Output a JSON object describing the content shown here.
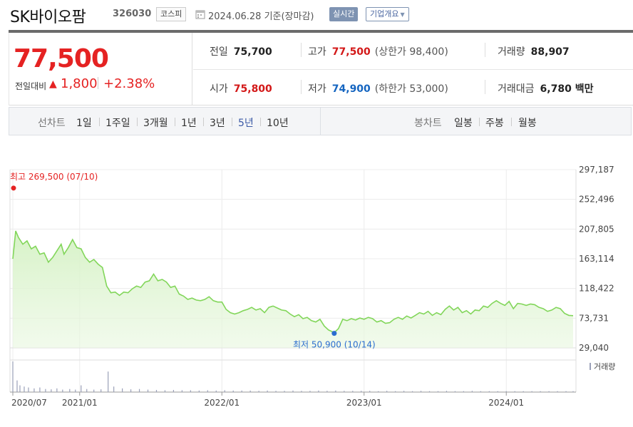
{
  "header": {
    "title": "SK바이오팜",
    "code": "326030",
    "market": "코스피",
    "as_of": "2024.06.28 기준(장마감)",
    "live_label": "실시간",
    "company_label": "기업개요",
    "dropdown_caret": "▼"
  },
  "quote": {
    "price": "77,500",
    "change_label": "전일대비",
    "change_arrow": "▲",
    "change_value": "1,800",
    "change_pct": "+2.38%",
    "prev_close_label": "전일",
    "prev_close": "75,700",
    "high_label": "고가",
    "high": "77,500",
    "upper_limit": "(상한가 98,400)",
    "volume_label": "거래량",
    "volume": "88,907",
    "open_label": "시가",
    "open": "75,800",
    "low_label": "저가",
    "low": "74,900",
    "lower_limit": "(하한가 53,000)",
    "amount_label": "거래대금",
    "amount": "6,780 백만"
  },
  "periods": {
    "line_label": "선차트",
    "line_items": [
      "1일",
      "1주일",
      "3개월",
      "1년",
      "3년",
      "5년",
      "10년"
    ],
    "selected": "5년",
    "candle_label": "봉차트",
    "candle_items": [
      "일봉",
      "주봉",
      "월봉"
    ]
  },
  "chart_data": {
    "type": "area",
    "x_tick_labels": [
      "2020/07",
      "2021/01",
      "2022/01",
      "2023/01",
      "2024/01"
    ],
    "y_tick_labels": [
      "297,187",
      "252,496",
      "207,805",
      "163,114",
      "118,422",
      "73,731",
      "29,040"
    ],
    "ylim": [
      29040,
      297187
    ],
    "grid": true,
    "max_annotation": "최고 269,500 (07/10)",
    "min_annotation": "최저 50,900 (10/14)",
    "volume_label": "거래량",
    "colors": {
      "line": "#82d65a",
      "fill": "#e8f7df",
      "max": "#e52222",
      "min": "#2b6dcf",
      "volume": "#9aa0b8"
    },
    "series": [
      {
        "values": [
          [
            2020.53,
            163000
          ],
          [
            2020.55,
            205000
          ],
          [
            2020.57,
            195000
          ],
          [
            2020.6,
            185000
          ],
          [
            2020.63,
            190000
          ],
          [
            2020.66,
            178000
          ],
          [
            2020.69,
            182000
          ],
          [
            2020.72,
            170000
          ],
          [
            2020.75,
            172000
          ],
          [
            2020.78,
            158000
          ],
          [
            2020.81,
            165000
          ],
          [
            2020.84,
            175000
          ],
          [
            2020.87,
            185000
          ],
          [
            2020.89,
            170000
          ],
          [
            2020.92,
            180000
          ],
          [
            2020.95,
            192000
          ],
          [
            2020.98,
            180000
          ],
          [
            2021.01,
            178000
          ],
          [
            2021.04,
            165000
          ],
          [
            2021.07,
            158000
          ],
          [
            2021.1,
            162000
          ],
          [
            2021.13,
            155000
          ],
          [
            2021.16,
            150000
          ],
          [
            2021.19,
            122000
          ],
          [
            2021.22,
            112000
          ],
          [
            2021.25,
            113000
          ],
          [
            2021.28,
            108000
          ],
          [
            2021.31,
            113000
          ],
          [
            2021.34,
            112000
          ],
          [
            2021.37,
            118000
          ],
          [
            2021.4,
            122000
          ],
          [
            2021.43,
            120000
          ],
          [
            2021.46,
            128000
          ],
          [
            2021.49,
            130000
          ],
          [
            2021.52,
            140000
          ],
          [
            2021.55,
            130000
          ],
          [
            2021.58,
            132000
          ],
          [
            2021.61,
            128000
          ],
          [
            2021.64,
            120000
          ],
          [
            2021.67,
            122000
          ],
          [
            2021.7,
            110000
          ],
          [
            2021.73,
            107000
          ],
          [
            2021.76,
            102000
          ],
          [
            2021.79,
            104000
          ],
          [
            2021.82,
            101000
          ],
          [
            2021.85,
            100000
          ],
          [
            2021.88,
            102000
          ],
          [
            2021.91,
            106000
          ],
          [
            2021.94,
            100000
          ],
          [
            2021.97,
            98000
          ],
          [
            2022.0,
            98000
          ],
          [
            2022.03,
            87000
          ],
          [
            2022.06,
            82000
          ],
          [
            2022.09,
            80000
          ],
          [
            2022.12,
            82000
          ],
          [
            2022.15,
            85000
          ],
          [
            2022.18,
            87000
          ],
          [
            2022.21,
            90000
          ],
          [
            2022.24,
            86000
          ],
          [
            2022.27,
            88000
          ],
          [
            2022.3,
            82000
          ],
          [
            2022.33,
            90000
          ],
          [
            2022.36,
            92000
          ],
          [
            2022.39,
            89000
          ],
          [
            2022.42,
            86000
          ],
          [
            2022.45,
            85000
          ],
          [
            2022.48,
            80000
          ],
          [
            2022.51,
            76000
          ],
          [
            2022.54,
            79000
          ],
          [
            2022.57,
            73000
          ],
          [
            2022.6,
            75000
          ],
          [
            2022.63,
            70000
          ],
          [
            2022.66,
            68000
          ],
          [
            2022.69,
            72000
          ],
          [
            2022.72,
            62000
          ],
          [
            2022.75,
            56000
          ],
          [
            2022.79,
            52000
          ],
          [
            2022.82,
            58000
          ],
          [
            2022.85,
            72000
          ],
          [
            2022.88,
            70000
          ],
          [
            2022.91,
            73000
          ],
          [
            2022.94,
            71000
          ],
          [
            2022.97,
            74000
          ],
          [
            2023.0,
            72000
          ],
          [
            2023.03,
            75000
          ],
          [
            2023.06,
            73000
          ],
          [
            2023.09,
            68000
          ],
          [
            2023.12,
            70000
          ],
          [
            2023.15,
            66000
          ],
          [
            2023.18,
            67000
          ],
          [
            2023.21,
            72000
          ],
          [
            2023.24,
            75000
          ],
          [
            2023.27,
            72000
          ],
          [
            2023.3,
            77000
          ],
          [
            2023.33,
            74000
          ],
          [
            2023.36,
            78000
          ],
          [
            2023.39,
            82000
          ],
          [
            2023.42,
            80000
          ],
          [
            2023.45,
            84000
          ],
          [
            2023.48,
            78000
          ],
          [
            2023.51,
            82000
          ],
          [
            2023.54,
            79000
          ],
          [
            2023.57,
            87000
          ],
          [
            2023.6,
            92000
          ],
          [
            2023.63,
            86000
          ],
          [
            2023.66,
            90000
          ],
          [
            2023.69,
            82000
          ],
          [
            2023.72,
            85000
          ],
          [
            2023.75,
            80000
          ],
          [
            2023.78,
            86000
          ],
          [
            2023.81,
            85000
          ],
          [
            2023.84,
            92000
          ],
          [
            2023.87,
            90000
          ],
          [
            2023.9,
            96000
          ],
          [
            2023.93,
            100000
          ],
          [
            2023.96,
            96000
          ],
          [
            2023.99,
            93000
          ],
          [
            2024.02,
            99000
          ],
          [
            2024.05,
            88000
          ],
          [
            2024.08,
            96000
          ],
          [
            2024.11,
            95000
          ],
          [
            2024.14,
            93000
          ],
          [
            2024.17,
            95000
          ],
          [
            2024.2,
            94000
          ],
          [
            2024.23,
            90000
          ],
          [
            2024.26,
            88000
          ],
          [
            2024.29,
            84000
          ],
          [
            2024.32,
            86000
          ],
          [
            2024.35,
            90000
          ],
          [
            2024.38,
            88000
          ],
          [
            2024.41,
            81000
          ],
          [
            2024.44,
            78000
          ],
          [
            2024.47,
            77500
          ]
        ]
      }
    ],
    "max_point": [
      2020.53,
      269500
    ],
    "min_point": [
      2022.79,
      50900
    ],
    "volume": [
      [
        2020.53,
        1.0
      ],
      [
        2020.56,
        0.38
      ],
      [
        2020.58,
        0.22
      ],
      [
        2020.61,
        0.18
      ],
      [
        2020.64,
        0.15
      ],
      [
        2020.68,
        0.12
      ],
      [
        2020.72,
        0.15
      ],
      [
        2020.76,
        0.1
      ],
      [
        2020.8,
        0.09
      ],
      [
        2020.84,
        0.12
      ],
      [
        2020.88,
        0.08
      ],
      [
        2020.93,
        0.1
      ],
      [
        2020.97,
        0.08
      ],
      [
        2021.01,
        0.22
      ],
      [
        2021.05,
        0.1
      ],
      [
        2021.1,
        0.08
      ],
      [
        2021.15,
        0.09
      ],
      [
        2021.2,
        0.67
      ],
      [
        2021.24,
        0.18
      ],
      [
        2021.3,
        0.12
      ],
      [
        2021.36,
        0.09
      ],
      [
        2021.42,
        0.1
      ],
      [
        2021.48,
        0.08
      ],
      [
        2021.54,
        0.07
      ],
      [
        2021.6,
        0.06
      ],
      [
        2021.66,
        0.07
      ],
      [
        2021.72,
        0.06
      ],
      [
        2021.78,
        0.06
      ],
      [
        2021.84,
        0.05
      ],
      [
        2021.9,
        0.06
      ],
      [
        2021.96,
        0.05
      ],
      [
        2022.02,
        0.06
      ],
      [
        2022.08,
        0.05
      ],
      [
        2022.14,
        0.05
      ],
      [
        2022.2,
        0.05
      ],
      [
        2022.26,
        0.04
      ],
      [
        2022.32,
        0.05
      ],
      [
        2022.38,
        0.04
      ],
      [
        2022.44,
        0.04
      ],
      [
        2022.5,
        0.05
      ],
      [
        2022.56,
        0.04
      ],
      [
        2022.62,
        0.04
      ],
      [
        2022.68,
        0.05
      ],
      [
        2022.74,
        0.04
      ],
      [
        2022.8,
        0.05
      ],
      [
        2022.86,
        0.04
      ],
      [
        2022.92,
        0.04
      ],
      [
        2022.98,
        0.04
      ],
      [
        2023.04,
        0.04
      ],
      [
        2023.1,
        0.03
      ],
      [
        2023.16,
        0.04
      ],
      [
        2023.22,
        0.03
      ],
      [
        2023.28,
        0.04
      ],
      [
        2023.34,
        0.03
      ],
      [
        2023.4,
        0.04
      ],
      [
        2023.46,
        0.03
      ],
      [
        2023.52,
        0.03
      ],
      [
        2023.58,
        0.04
      ],
      [
        2023.64,
        0.03
      ],
      [
        2023.7,
        0.03
      ],
      [
        2023.76,
        0.04
      ],
      [
        2023.82,
        0.03
      ],
      [
        2023.88,
        0.03
      ],
      [
        2023.94,
        0.03
      ],
      [
        2024.0,
        0.03
      ],
      [
        2024.06,
        0.03
      ],
      [
        2024.12,
        0.03
      ],
      [
        2024.18,
        0.03
      ],
      [
        2024.24,
        0.03
      ],
      [
        2024.3,
        0.03
      ],
      [
        2024.36,
        0.03
      ],
      [
        2024.42,
        0.03
      ],
      [
        2024.47,
        0.03
      ]
    ]
  }
}
